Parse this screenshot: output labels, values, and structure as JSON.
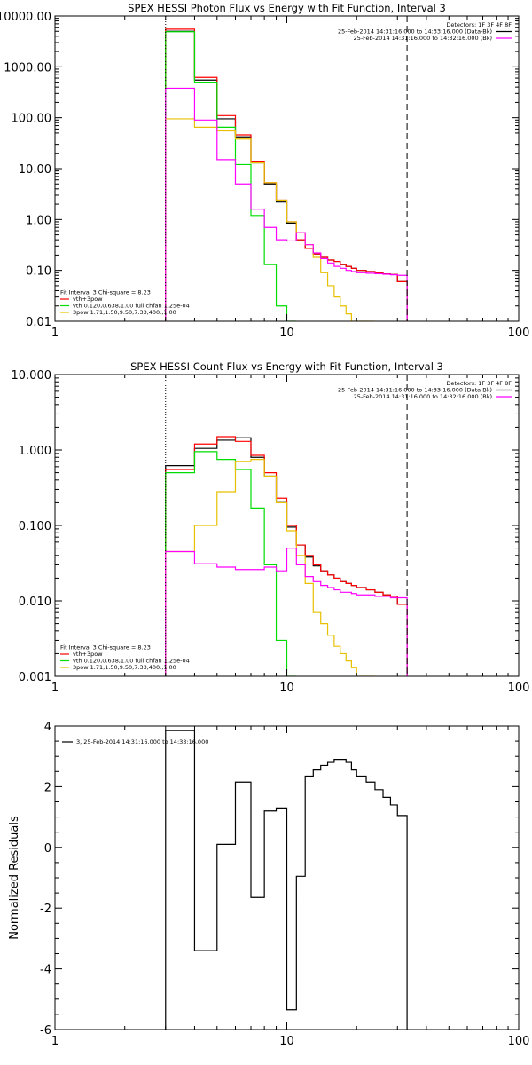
{
  "chart_data": [
    {
      "type": "line",
      "title": "SPEX HESSI Photon Flux vs Energy with Fit Function, Interval 3",
      "xscale": "log",
      "yscale": "log",
      "xlim": [
        1,
        100
      ],
      "ylim": [
        0.01,
        10000
      ],
      "x_ticks": [
        {
          "v": 1,
          "label": "1"
        },
        {
          "v": 10,
          "label": "10"
        },
        {
          "v": 100,
          "label": "100"
        }
      ],
      "y_ticks": [
        {
          "v": 10000,
          "label": "10000.00"
        },
        {
          "v": 1000,
          "label": "1000.00"
        },
        {
          "v": 100,
          "label": "100.00"
        },
        {
          "v": 10,
          "label": "10.00"
        },
        {
          "v": 1,
          "label": "1.00"
        },
        {
          "v": 0.1,
          "label": "0.10"
        },
        {
          "v": 0.01,
          "label": "0.01"
        }
      ],
      "vlines": [
        {
          "x": 3,
          "style": "dotted"
        },
        {
          "x": 33,
          "style": "dashed"
        }
      ],
      "legend_topright": [
        {
          "text": "Detectors: 1F 3F 4F 8F",
          "color": "#000000",
          "line": false
        },
        {
          "text": "25-Feb-2014 14:31:16.000 to 14:33:16.000 (Data-Bk)",
          "color": "#000000",
          "line": true
        },
        {
          "text": "25-Feb-2014 14:31:16.000 to 14:32:16.000 (Bk)",
          "color": "#ff00ff",
          "line": true
        }
      ],
      "legend_bottomleft": [
        {
          "text": "Fit Interval 3   Chi-square = 8.23",
          "color": "#000000",
          "line": false
        },
        {
          "text": "vth+3pow",
          "color": "#ff0000",
          "line": true
        },
        {
          "text": "vth 0.120,0.638,1.00  full chfan 1.25e-04",
          "color": "#00dd00",
          "line": true
        },
        {
          "text": "3pow 1.71,1.50,9.50,7.33,400.,1.00",
          "color": "#e8c000",
          "line": true
        }
      ],
      "edges": [
        3,
        4,
        5,
        6,
        7,
        8,
        9,
        10,
        11,
        12,
        13,
        14,
        15,
        16,
        17,
        18,
        19,
        20,
        22,
        24,
        26,
        28,
        30,
        33
      ],
      "series": [
        {
          "name": "25-Feb-2014 14:31:16.000 to 14:33:16.000 (Data-Bk)",
          "color": "#000000",
          "values": [
            5000,
            550,
            95,
            42,
            13,
            5,
            2.2,
            0.85,
            0.4,
            0.27,
            0.21,
            0.18,
            0.16,
            0.15,
            0.13,
            0.12,
            0.11,
            0.1,
            0.095,
            0.09,
            0.085,
            0.083,
            0.06
          ]
        },
        {
          "name": "vth+3pow",
          "color": "#ff0000",
          "values": [
            5500,
            620,
            110,
            46,
            14,
            5.3,
            2.4,
            0.9,
            0.4,
            0.27,
            0.21,
            0.18,
            0.16,
            0.15,
            0.13,
            0.12,
            0.11,
            0.1,
            0.095,
            0.09,
            0.085,
            0.083,
            0.06
          ]
        },
        {
          "name": "vth 0.120,0.638,1.00  full chfan 1.25e-04",
          "color": "#00dd00",
          "values": [
            4900,
            500,
            65,
            12,
            1.2,
            0.13,
            0.02,
            0.005
          ]
        },
        {
          "name": "3pow 1.71,1.50,9.50,7.33,400.,1.00",
          "color": "#e8c000",
          "values": [
            95,
            65,
            55,
            38,
            13,
            5.3,
            2.4,
            0.9,
            0.55,
            0.32,
            0.18,
            0.09,
            0.05,
            0.03,
            0.02,
            0.014,
            0.01,
            0.008,
            0.006
          ]
        },
        {
          "name": "25-Feb-2014 14:31:16.000 to 14:32:16.000 (Bk)",
          "color": "#ff00ff",
          "values": [
            380,
            90,
            15,
            5,
            1.6,
            0.7,
            0.4,
            0.38,
            0.55,
            0.32,
            0.22,
            0.17,
            0.14,
            0.12,
            0.11,
            0.1,
            0.095,
            0.09,
            0.088,
            0.086,
            0.084,
            0.082,
            0.08
          ]
        }
      ]
    },
    {
      "type": "line",
      "title": "SPEX HESSI Count Flux vs Energy with Fit Function, Interval 3",
      "xscale": "log",
      "yscale": "log",
      "xlim": [
        1,
        100
      ],
      "ylim": [
        0.001,
        10
      ],
      "x_ticks": [
        {
          "v": 1,
          "label": "1"
        },
        {
          "v": 10,
          "label": "10"
        },
        {
          "v": 100,
          "label": "100"
        }
      ],
      "y_ticks": [
        {
          "v": 10,
          "label": "10.000"
        },
        {
          "v": 1,
          "label": "1.000"
        },
        {
          "v": 0.1,
          "label": "0.100"
        },
        {
          "v": 0.01,
          "label": "0.010"
        },
        {
          "v": 0.001,
          "label": "0.001"
        }
      ],
      "vlines": [
        {
          "x": 3,
          "style": "dotted"
        },
        {
          "x": 33,
          "style": "dashed"
        }
      ],
      "legend_topright": [
        {
          "text": "Detectors: 1F 3F 4F 8F",
          "color": "#000000",
          "line": false
        },
        {
          "text": "25-Feb-2014 14:31:16.000 to 14:33:16.000 (Data-Bk)",
          "color": "#000000",
          "line": true
        },
        {
          "text": "25-Feb-2014 14:31:16.000 to 14:32:16.000 (Bk)",
          "color": "#ff00ff",
          "line": true
        }
      ],
      "legend_bottomleft": [
        {
          "text": "Fit Interval 3   Chi-square = 8.23",
          "color": "#000000",
          "line": false
        },
        {
          "text": "vth+3pow",
          "color": "#ff0000",
          "line": true
        },
        {
          "text": "vth 0.120,0.638,1.00  full chfan 1.25e-04",
          "color": "#00dd00",
          "line": true
        },
        {
          "text": "3pow 1.71,1.50,9.50,7.33,400.,1.00",
          "color": "#e8c000",
          "line": true
        }
      ],
      "edges": [
        3,
        4,
        5,
        6,
        7,
        8,
        9,
        10,
        11,
        12,
        13,
        14,
        15,
        16,
        17,
        18,
        19,
        20,
        22,
        24,
        26,
        28,
        30,
        33
      ],
      "series": [
        {
          "name": "25-Feb-2014 14:31:16.000 to 14:33:16.000 (Data-Bk)",
          "color": "#000000",
          "values": [
            0.62,
            1.05,
            1.35,
            1.45,
            0.8,
            0.45,
            0.21,
            0.095,
            0.055,
            0.038,
            0.029,
            0.025,
            0.022,
            0.02,
            0.018,
            0.017,
            0.016,
            0.015,
            0.014,
            0.013,
            0.012,
            0.0115,
            0.009
          ]
        },
        {
          "name": "vth+3pow",
          "color": "#ff0000",
          "values": [
            0.55,
            1.2,
            1.5,
            1.3,
            0.85,
            0.5,
            0.23,
            0.1,
            0.055,
            0.04,
            0.03,
            0.025,
            0.022,
            0.02,
            0.018,
            0.017,
            0.016,
            0.015,
            0.014,
            0.013,
            0.012,
            0.0115,
            0.009
          ]
        },
        {
          "name": "vth 0.120,0.638,1.00  full chfan 1.25e-04",
          "color": "#00dd00",
          "values": [
            0.5,
            0.95,
            0.75,
            0.55,
            0.17,
            0.03,
            0.003,
            0.0005
          ]
        },
        {
          "name": "3pow 1.71,1.50,9.50,7.33,400.,1.00",
          "color": "#e8c000",
          "values": [
            0.045,
            0.1,
            0.28,
            0.7,
            0.75,
            0.45,
            0.2,
            0.085,
            0.04,
            0.017,
            0.007,
            0.005,
            0.0035,
            0.0025,
            0.002,
            0.0016,
            0.0013,
            0.001,
            0.0008
          ]
        },
        {
          "name": "25-Feb-2014 14:31:16.000 to 14:32:16.000 (Bk)",
          "color": "#ff00ff",
          "values": [
            0.045,
            0.031,
            0.028,
            0.026,
            0.026,
            0.028,
            0.025,
            0.05,
            0.03,
            0.021,
            0.018,
            0.016,
            0.015,
            0.014,
            0.013,
            0.013,
            0.0125,
            0.012,
            0.012,
            0.0115,
            0.0115,
            0.011,
            0.011
          ]
        }
      ]
    },
    {
      "type": "line",
      "title": "",
      "xscale": "log",
      "yscale": "linear",
      "xlim": [
        1,
        100
      ],
      "ylim": [
        -6,
        4
      ],
      "ylabel": "Normalized Residuals",
      "x_ticks": [
        {
          "v": 1,
          "label": "1"
        },
        {
          "v": 10,
          "label": "10"
        },
        {
          "v": 100,
          "label": "100"
        }
      ],
      "y_ticks": [
        {
          "v": 4,
          "label": "4"
        },
        {
          "v": 2,
          "label": "2"
        },
        {
          "v": 0,
          "label": "0"
        },
        {
          "v": -2,
          "label": "-2"
        },
        {
          "v": -4,
          "label": "-4"
        },
        {
          "v": -6,
          "label": "-6"
        }
      ],
      "vlines": [],
      "legend_topleft": [
        {
          "text": "3, 25-Feb-2014 14:31:16.000 to 14:33:16.000",
          "color": "#000000",
          "line": true
        }
      ],
      "edges": [
        3,
        4,
        5,
        6,
        7,
        8,
        9,
        10,
        11,
        12,
        13,
        14,
        15,
        16,
        17,
        18,
        19,
        20,
        22,
        24,
        26,
        28,
        30,
        33
      ],
      "series": [
        {
          "name": "3, 25-Feb-2014 14:31:16.000 to 14:33:16.000",
          "color": "#000000",
          "values": [
            3.85,
            -3.4,
            0.1,
            2.15,
            -1.65,
            1.2,
            1.3,
            -5.35,
            -0.95,
            2.35,
            2.55,
            2.7,
            2.8,
            2.9,
            2.9,
            2.8,
            2.55,
            2.35,
            2.15,
            1.9,
            1.65,
            1.4,
            1.05
          ]
        }
      ]
    }
  ]
}
